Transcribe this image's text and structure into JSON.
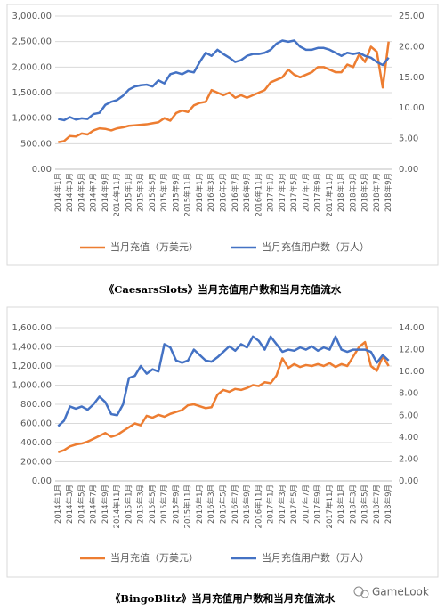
{
  "chart_data": [
    {
      "type": "line",
      "title": "《CaesarsSlots》当月充值用户数和当月充值流水",
      "categories": [
        "2014年1月",
        null,
        "2014年3月",
        null,
        "2014年5月",
        null,
        "2014年7月",
        null,
        "2014年9月",
        null,
        "2014年11月",
        null,
        "2015年1月",
        null,
        "2015年3月",
        null,
        "2015年5月",
        null,
        "2015年7月",
        null,
        "2015年9月",
        null,
        "2015年11月",
        null,
        "2016年1月",
        null,
        "2016年3月",
        null,
        "2016年5月",
        null,
        "2016年7月",
        null,
        "2016年9月",
        null,
        "2016年11月",
        null,
        "2017年1月",
        null,
        "2017年3月",
        null,
        "2017年5月",
        null,
        "2017年7月",
        null,
        "2017年9月",
        null,
        "2017年11月",
        null,
        "2018年1月",
        null,
        "2018年3月",
        null,
        "2018年5月",
        null,
        "2018年7月",
        null,
        "2018年9月"
      ],
      "series": [
        {
          "name": "当月充值（万美元）",
          "color": "#ed7d31",
          "values": [
            530,
            550,
            650,
            640,
            700,
            680,
            760,
            800,
            790,
            760,
            800,
            820,
            850,
            860,
            870,
            880,
            900,
            920,
            1000,
            950,
            1100,
            1150,
            1120,
            1250,
            1300,
            1320,
            1550,
            1500,
            1450,
            1500,
            1400,
            1450,
            1400,
            1450,
            1500,
            1550,
            1700,
            1750,
            1800,
            1950,
            1850,
            1800,
            1850,
            1900,
            2000,
            2000,
            1950,
            1900,
            1900,
            2050,
            2000,
            2250,
            2100,
            2400,
            2300,
            1600,
            2500
          ]
        },
        {
          "name": "当月充值用户数（万人）",
          "color": "#4472c4",
          "axis": "y2",
          "values": [
            8.2,
            8.0,
            8.5,
            8.1,
            8.3,
            8.2,
            9.0,
            9.2,
            10.5,
            11.0,
            11.3,
            12.0,
            13.0,
            13.5,
            13.7,
            13.8,
            13.5,
            14.5,
            14.0,
            15.5,
            15.8,
            15.5,
            16.0,
            15.8,
            17.5,
            19.0,
            18.5,
            19.5,
            18.8,
            18.2,
            17.5,
            17.8,
            18.5,
            18.8,
            18.8,
            19.0,
            19.5,
            20.5,
            21.0,
            20.8,
            21.0,
            20.0,
            19.5,
            19.5,
            19.8,
            19.8,
            19.5,
            19.0,
            18.5,
            19.0,
            18.8,
            19.0,
            18.5,
            18.2,
            17.5,
            17.0,
            18.2
          ]
        }
      ],
      "ylim": [
        0,
        3000
      ],
      "yticks": [
        {
          "value": 0,
          "label": "0.00"
        },
        {
          "value": 500,
          "label": "500.00"
        },
        {
          "value": 1000,
          "label": "1,000.00"
        },
        {
          "value": 1500,
          "label": "1,500.00"
        },
        {
          "value": 2000,
          "label": "2,000.00"
        },
        {
          "value": 2500,
          "label": "2,500.00"
        },
        {
          "value": 3000,
          "label": "3,000.00"
        }
      ],
      "y2lim": [
        0,
        25
      ],
      "y2ticks": [
        {
          "value": 0,
          "label": "0.00"
        },
        {
          "value": 5,
          "label": "5.00"
        },
        {
          "value": 10,
          "label": "10.00"
        },
        {
          "value": 15,
          "label": "15.00"
        },
        {
          "value": 20,
          "label": "20.00"
        },
        {
          "value": 25,
          "label": "25.00"
        }
      ],
      "legend": "bottom"
    },
    {
      "type": "line",
      "title": "《BingoBlitz》当月充值用户数和当月充值流水",
      "categories": [
        "2014年1月",
        null,
        "2014年3月",
        null,
        "2014年5月",
        null,
        "2014年7月",
        null,
        "2014年9月",
        null,
        "2014年11月",
        null,
        "2015年1月",
        null,
        "2015年3月",
        null,
        "2015年5月",
        null,
        "2015年7月",
        null,
        "2015年9月",
        null,
        "2015年11月",
        null,
        "2016年1月",
        null,
        "2016年3月",
        null,
        "2016年5月",
        null,
        "2016年7月",
        null,
        "2016年9月",
        null,
        "2016年11月",
        null,
        "2017年1月",
        null,
        "2017年3月",
        null,
        "2017年5月",
        null,
        "2017年7月",
        null,
        "2017年9月",
        null,
        "2017年11月",
        null,
        "2018年1月",
        null,
        "2018年3月",
        null,
        "2018年5月",
        null,
        "2018年7月",
        null,
        "2018年9月"
      ],
      "series": [
        {
          "name": "当月充值（万美元）",
          "color": "#ed7d31",
          "values": [
            300,
            320,
            360,
            380,
            390,
            410,
            440,
            470,
            500,
            460,
            480,
            520,
            560,
            600,
            580,
            680,
            660,
            690,
            670,
            700,
            720,
            740,
            790,
            800,
            780,
            760,
            770,
            900,
            950,
            930,
            960,
            950,
            970,
            1000,
            990,
            1030,
            1020,
            1100,
            1280,
            1180,
            1220,
            1190,
            1210,
            1200,
            1220,
            1200,
            1230,
            1190,
            1220,
            1200,
            1300,
            1400,
            1450,
            1200,
            1150,
            1300,
            1200
          ]
        },
        {
          "name": "当月充值用户数（万人）",
          "color": "#4472c4",
          "axis": "y2",
          "values": [
            5.0,
            5.5,
            6.8,
            6.6,
            6.8,
            6.5,
            7.0,
            7.7,
            7.2,
            6.1,
            6.0,
            7.0,
            9.4,
            9.6,
            10.5,
            9.8,
            10.2,
            10.0,
            12.5,
            12.2,
            11.0,
            10.8,
            11.0,
            12.0,
            11.5,
            11.0,
            10.9,
            11.3,
            11.8,
            12.3,
            11.9,
            12.5,
            12.2,
            13.2,
            12.8,
            12.0,
            13.2,
            12.5,
            11.8,
            12.0,
            11.9,
            12.2,
            12.0,
            12.3,
            11.9,
            12.2,
            12.0,
            13.2,
            12.0,
            11.8,
            12.0,
            12.0,
            12.0,
            11.8,
            10.8,
            11.5,
            11.0
          ]
        }
      ],
      "ylim": [
        0,
        1600
      ],
      "yticks": [
        {
          "value": 0,
          "label": "0.00"
        },
        {
          "value": 200,
          "label": "200.00"
        },
        {
          "value": 400,
          "label": "400.00"
        },
        {
          "value": 600,
          "label": "600.00"
        },
        {
          "value": 800,
          "label": "800.00"
        },
        {
          "value": 1000,
          "label": "1,000.00"
        },
        {
          "value": 1200,
          "label": "1,200.00"
        },
        {
          "value": 1400,
          "label": "1,400.00"
        },
        {
          "value": 1600,
          "label": "1,600.00"
        }
      ],
      "y2lim": [
        0,
        14
      ],
      "y2ticks": [
        {
          "value": 0,
          "label": "0.00"
        },
        {
          "value": 2,
          "label": "2.00"
        },
        {
          "value": 4,
          "label": "4.00"
        },
        {
          "value": 6,
          "label": "6.00"
        },
        {
          "value": 8,
          "label": "8.00"
        },
        {
          "value": 10,
          "label": "10.00"
        },
        {
          "value": 12,
          "label": "12.00"
        },
        {
          "value": 14,
          "label": "14.00"
        }
      ],
      "legend": "bottom"
    }
  ],
  "watermark": "GameLook"
}
